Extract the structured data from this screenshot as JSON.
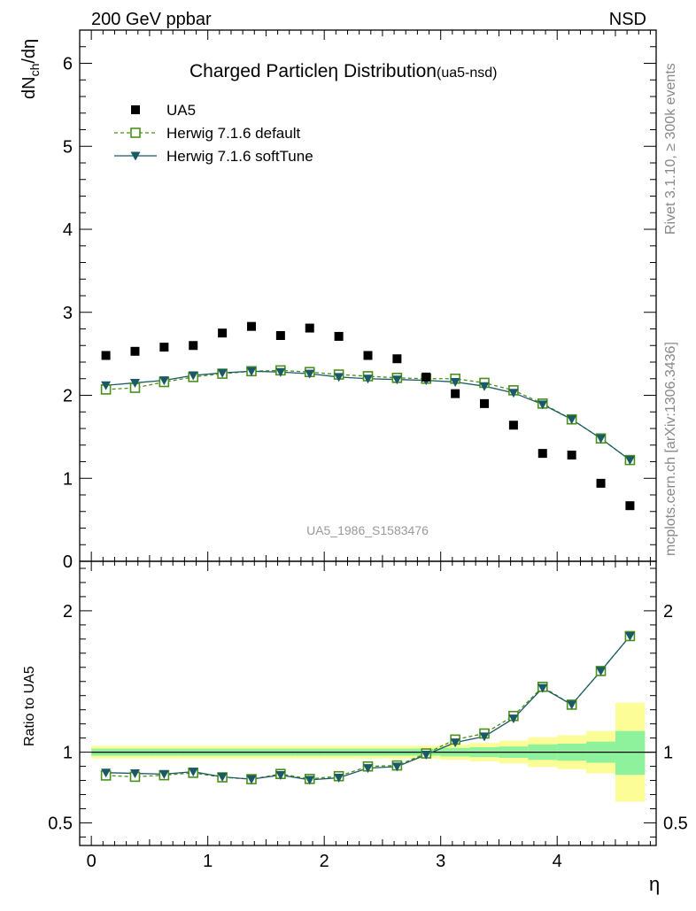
{
  "header": {
    "left": "200 GeV ppbar",
    "right": "NSD"
  },
  "title": {
    "main": "Charged Particle",
    "eta": "η",
    "rest": " Distribution",
    "tag": "(ua5-nsd)"
  },
  "watermark": "UA5_1986_S1583476",
  "side_text": {
    "rivet": "Rivet 3.1.10, ≥ 300k events",
    "mcplots": "mcplots.cern.ch [arXiv:1306.3436]"
  },
  "colors": {
    "data": "#000000",
    "herwig_default": "#4a8f1a",
    "herwig_soft": "#1a5a66",
    "band_inner": "#8ef29c",
    "band_outer": "#fdfd98"
  },
  "chart_data": [
    {
      "type": "scatter",
      "panel": "main",
      "xlabel": "η",
      "ylabel": "dN_ch/dη",
      "xlim": [
        -0.1,
        4.85
      ],
      "ylim": [
        0,
        6.4
      ],
      "yticks": [
        0,
        1,
        2,
        3,
        4,
        5,
        6
      ],
      "legend_position": "top-left",
      "x": [
        0.125,
        0.375,
        0.625,
        0.875,
        1.125,
        1.375,
        1.625,
        1.875,
        2.125,
        2.375,
        2.625,
        2.875,
        3.125,
        3.375,
        3.625,
        3.875,
        4.125,
        4.375,
        4.625
      ],
      "series": [
        {
          "name": "UA5",
          "style": "square-filled",
          "values": [
            2.48,
            2.53,
            2.58,
            2.6,
            2.75,
            2.83,
            2.72,
            2.81,
            2.71,
            2.48,
            2.44,
            2.22,
            2.02,
            1.9,
            1.64,
            1.3,
            1.28,
            0.94,
            0.67
          ]
        },
        {
          "name": "Herwig 7.1.6 default",
          "style": "square-open-dashed",
          "values": [
            2.07,
            2.09,
            2.16,
            2.22,
            2.26,
            2.29,
            2.3,
            2.28,
            2.25,
            2.23,
            2.21,
            2.2,
            2.2,
            2.15,
            2.06,
            1.9,
            1.71,
            1.48,
            1.22
          ]
        },
        {
          "name": "Herwig 7.1.6 softTune",
          "style": "triangle-down-solid",
          "values": [
            2.12,
            2.15,
            2.18,
            2.24,
            2.27,
            2.29,
            2.28,
            2.26,
            2.22,
            2.2,
            2.19,
            2.18,
            2.16,
            2.11,
            2.03,
            1.89,
            1.71,
            1.48,
            1.22
          ]
        }
      ]
    },
    {
      "type": "scatter",
      "panel": "ratio",
      "xlabel": "η",
      "ylabel": "Ratio to UA5",
      "xlim": [
        -0.1,
        4.85
      ],
      "ylim": [
        0.34,
        2.35
      ],
      "yticks": [
        0.5,
        1,
        2
      ],
      "xticks": [
        0,
        1,
        2,
        3,
        4
      ],
      "x": [
        0.125,
        0.375,
        0.625,
        0.875,
        1.125,
        1.375,
        1.625,
        1.875,
        2.125,
        2.375,
        2.625,
        2.875,
        3.125,
        3.375,
        3.625,
        3.875,
        4.125,
        4.375,
        4.625
      ],
      "bands": {
        "edges": [
          0.0,
          0.25,
          0.5,
          0.75,
          1.0,
          1.25,
          1.5,
          1.75,
          2.0,
          2.25,
          2.5,
          2.75,
          3.0,
          3.25,
          3.5,
          3.75,
          4.0,
          4.25,
          4.5,
          4.75
        ],
        "inner_low": [
          0.975,
          0.975,
          0.975,
          0.975,
          0.975,
          0.975,
          0.975,
          0.975,
          0.975,
          0.975,
          0.975,
          0.975,
          0.97,
          0.965,
          0.96,
          0.945,
          0.94,
          0.925,
          0.84
        ],
        "inner_high": [
          1.025,
          1.025,
          1.025,
          1.025,
          1.025,
          1.025,
          1.025,
          1.025,
          1.025,
          1.025,
          1.025,
          1.025,
          1.03,
          1.035,
          1.04,
          1.055,
          1.06,
          1.075,
          1.15
        ],
        "outer_low": [
          0.955,
          0.955,
          0.955,
          0.955,
          0.955,
          0.955,
          0.955,
          0.955,
          0.955,
          0.955,
          0.955,
          0.955,
          0.945,
          0.935,
          0.92,
          0.895,
          0.88,
          0.85,
          0.65
        ],
        "outer_high": [
          1.045,
          1.045,
          1.045,
          1.045,
          1.045,
          1.045,
          1.045,
          1.045,
          1.045,
          1.045,
          1.045,
          1.045,
          1.055,
          1.065,
          1.08,
          1.105,
          1.12,
          1.15,
          1.35
        ]
      },
      "series": [
        {
          "name": "Herwig 7.1.6 default",
          "values": [
            0.835,
            0.826,
            0.837,
            0.854,
            0.822,
            0.809,
            0.846,
            0.811,
            0.83,
            0.899,
            0.906,
            0.991,
            1.089,
            1.132,
            1.256,
            1.462,
            1.336,
            1.574,
            1.821
          ]
        },
        {
          "name": "Herwig 7.1.6 softTune",
          "values": [
            0.855,
            0.85,
            0.845,
            0.862,
            0.825,
            0.809,
            0.838,
            0.804,
            0.819,
            0.887,
            0.898,
            0.982,
            1.069,
            1.111,
            1.238,
            1.454,
            1.336,
            1.574,
            1.821
          ]
        }
      ]
    }
  ]
}
